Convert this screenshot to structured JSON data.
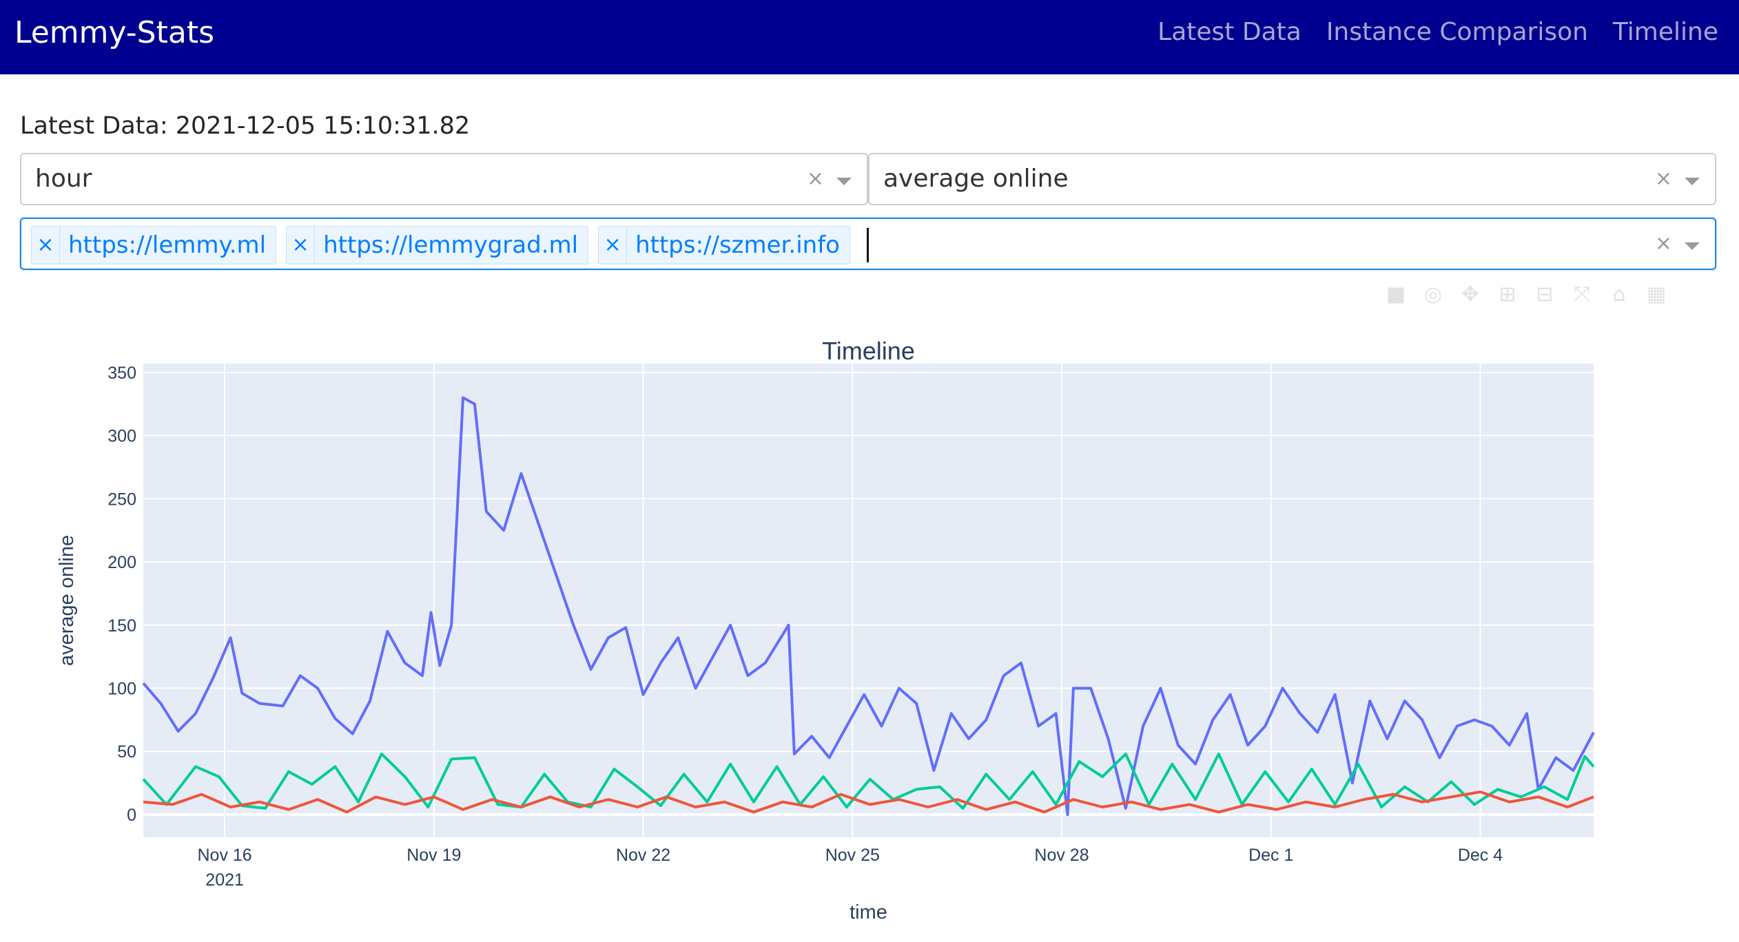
{
  "navbar": {
    "brand": "Lemmy-Stats",
    "links": [
      "Latest Data",
      "Instance Comparison",
      "Timeline"
    ],
    "background": "#000090"
  },
  "latest_data_label": "Latest Data: 2021-12-05 15:10:31.82",
  "controls": {
    "interval_select": {
      "value": "hour"
    },
    "metric_select": {
      "value": "average online"
    },
    "instances": [
      "https://lemmy.ml",
      "https://lemmygrad.ml",
      "https://szmer.info"
    ]
  },
  "modebar_icons": [
    "camera-icon",
    "zoom-icon",
    "pan-icon",
    "zoom-in-icon",
    "zoom-out-icon",
    "autoscale-icon",
    "home-icon",
    "plotly-logo-icon"
  ],
  "chart_data": {
    "type": "line",
    "title": "Timeline",
    "xlabel": "time",
    "ylabel": "average online",
    "x_ticks": [
      "Nov 16",
      "Nov 19",
      "Nov 22",
      "Nov 25",
      "Nov 28",
      "Dec 1",
      "Dec 4"
    ],
    "x_tick_year": "2021",
    "y_ticks": [
      0,
      50,
      100,
      150,
      200,
      250,
      300,
      350
    ],
    "xlim": [
      "2021-11-14 20:00",
      "2021-12-05 15:00"
    ],
    "ylim": [
      -18,
      357
    ],
    "grid": true,
    "plot_bgcolor": "#e5ecf6",
    "series": [
      {
        "color": "#636efa",
        "points": [
          [
            "2021-11-14 20:00",
            104
          ],
          [
            "2021-11-15 02:00",
            88
          ],
          [
            "2021-11-15 08:00",
            66
          ],
          [
            "2021-11-15 14:00",
            80
          ],
          [
            "2021-11-15 20:00",
            108
          ],
          [
            "2021-11-16 02:00",
            140
          ],
          [
            "2021-11-16 06:00",
            96
          ],
          [
            "2021-11-16 12:00",
            88
          ],
          [
            "2021-11-16 20:00",
            86
          ],
          [
            "2021-11-17 02:00",
            110
          ],
          [
            "2021-11-17 08:00",
            100
          ],
          [
            "2021-11-17 14:00",
            76
          ],
          [
            "2021-11-17 20:00",
            64
          ],
          [
            "2021-11-18 02:00",
            90
          ],
          [
            "2021-11-18 08:00",
            145
          ],
          [
            "2021-11-18 14:00",
            120
          ],
          [
            "2021-11-18 20:00",
            110
          ],
          [
            "2021-11-18 23:00",
            160
          ],
          [
            "2021-11-19 02:00",
            118
          ],
          [
            "2021-11-19 06:00",
            150
          ],
          [
            "2021-11-19 10:00",
            330
          ],
          [
            "2021-11-19 14:00",
            325
          ],
          [
            "2021-11-19 18:00",
            240
          ],
          [
            "2021-11-20 00:00",
            225
          ],
          [
            "2021-11-20 06:00",
            270
          ],
          [
            "2021-11-20 12:00",
            230
          ],
          [
            "2021-11-20 18:00",
            190
          ],
          [
            "2021-11-21 00:00",
            150
          ],
          [
            "2021-11-21 06:00",
            115
          ],
          [
            "2021-11-21 12:00",
            140
          ],
          [
            "2021-11-21 18:00",
            148
          ],
          [
            "2021-11-22 00:00",
            95
          ],
          [
            "2021-11-22 06:00",
            120
          ],
          [
            "2021-11-22 12:00",
            140
          ],
          [
            "2021-11-22 18:00",
            100
          ],
          [
            "2021-11-23 00:00",
            125
          ],
          [
            "2021-11-23 06:00",
            150
          ],
          [
            "2021-11-23 12:00",
            110
          ],
          [
            "2021-11-23 18:00",
            120
          ],
          [
            "2021-11-24 02:00",
            150
          ],
          [
            "2021-11-24 04:00",
            48
          ],
          [
            "2021-11-24 10:00",
            62
          ],
          [
            "2021-11-24 16:00",
            45
          ],
          [
            "2021-11-24 22:00",
            70
          ],
          [
            "2021-11-25 04:00",
            95
          ],
          [
            "2021-11-25 10:00",
            70
          ],
          [
            "2021-11-25 16:00",
            100
          ],
          [
            "2021-11-25 22:00",
            88
          ],
          [
            "2021-11-26 04:00",
            35
          ],
          [
            "2021-11-26 10:00",
            80
          ],
          [
            "2021-11-26 16:00",
            60
          ],
          [
            "2021-11-26 22:00",
            75
          ],
          [
            "2021-11-27 04:00",
            110
          ],
          [
            "2021-11-27 10:00",
            120
          ],
          [
            "2021-11-27 16:00",
            70
          ],
          [
            "2021-11-27 22:00",
            80
          ],
          [
            "2021-11-28 02:00",
            0
          ],
          [
            "2021-11-28 04:00",
            100
          ],
          [
            "2021-11-28 10:00",
            100
          ],
          [
            "2021-11-28 16:00",
            60
          ],
          [
            "2021-11-28 22:00",
            5
          ],
          [
            "2021-11-29 04:00",
            70
          ],
          [
            "2021-11-29 10:00",
            100
          ],
          [
            "2021-11-29 16:00",
            55
          ],
          [
            "2021-11-29 22:00",
            40
          ],
          [
            "2021-11-30 04:00",
            75
          ],
          [
            "2021-11-30 10:00",
            95
          ],
          [
            "2021-11-30 16:00",
            55
          ],
          [
            "2021-11-30 22:00",
            70
          ],
          [
            "2021-12-01 04:00",
            100
          ],
          [
            "2021-12-01 10:00",
            80
          ],
          [
            "2021-12-01 16:00",
            65
          ],
          [
            "2021-12-01 22:00",
            95
          ],
          [
            "2021-12-02 04:00",
            25
          ],
          [
            "2021-12-02 10:00",
            90
          ],
          [
            "2021-12-02 16:00",
            60
          ],
          [
            "2021-12-02 22:00",
            90
          ],
          [
            "2021-12-03 04:00",
            75
          ],
          [
            "2021-12-03 10:00",
            45
          ],
          [
            "2021-12-03 16:00",
            70
          ],
          [
            "2021-12-03 22:00",
            75
          ],
          [
            "2021-12-04 04:00",
            70
          ],
          [
            "2021-12-04 10:00",
            55
          ],
          [
            "2021-12-04 16:00",
            80
          ],
          [
            "2021-12-04 20:00",
            20
          ],
          [
            "2021-12-05 02:00",
            45
          ],
          [
            "2021-12-05 08:00",
            35
          ],
          [
            "2021-12-05 15:00",
            65
          ]
        ]
      },
      {
        "color": "#00cc96",
        "points": [
          [
            "2021-11-14 20:00",
            28
          ],
          [
            "2021-11-15 04:00",
            8
          ],
          [
            "2021-11-15 14:00",
            38
          ],
          [
            "2021-11-15 22:00",
            30
          ],
          [
            "2021-11-16 06:00",
            7
          ],
          [
            "2021-11-16 14:00",
            5
          ],
          [
            "2021-11-16 22:00",
            34
          ],
          [
            "2021-11-17 06:00",
            24
          ],
          [
            "2021-11-17 14:00",
            38
          ],
          [
            "2021-11-17 22:00",
            10
          ],
          [
            "2021-11-18 06:00",
            48
          ],
          [
            "2021-11-18 14:00",
            30
          ],
          [
            "2021-11-18 22:00",
            6
          ],
          [
            "2021-11-19 06:00",
            44
          ],
          [
            "2021-11-19 14:00",
            45
          ],
          [
            "2021-11-19 22:00",
            8
          ],
          [
            "2021-11-20 06:00",
            6
          ],
          [
            "2021-11-20 14:00",
            32
          ],
          [
            "2021-11-20 22:00",
            10
          ],
          [
            "2021-11-21 06:00",
            6
          ],
          [
            "2021-11-21 14:00",
            36
          ],
          [
            "2021-11-21 22:00",
            22
          ],
          [
            "2021-11-22 06:00",
            7
          ],
          [
            "2021-11-22 14:00",
            32
          ],
          [
            "2021-11-22 22:00",
            10
          ],
          [
            "2021-11-23 06:00",
            40
          ],
          [
            "2021-11-23 14:00",
            10
          ],
          [
            "2021-11-23 22:00",
            38
          ],
          [
            "2021-11-24 06:00",
            8
          ],
          [
            "2021-11-24 14:00",
            30
          ],
          [
            "2021-11-24 22:00",
            6
          ],
          [
            "2021-11-25 06:00",
            28
          ],
          [
            "2021-11-25 14:00",
            12
          ],
          [
            "2021-11-25 22:00",
            20
          ],
          [
            "2021-11-26 06:00",
            22
          ],
          [
            "2021-11-26 14:00",
            5
          ],
          [
            "2021-11-26 22:00",
            32
          ],
          [
            "2021-11-27 06:00",
            12
          ],
          [
            "2021-11-27 14:00",
            34
          ],
          [
            "2021-11-27 22:00",
            8
          ],
          [
            "2021-11-28 06:00",
            42
          ],
          [
            "2021-11-28 14:00",
            30
          ],
          [
            "2021-11-28 22:00",
            48
          ],
          [
            "2021-11-29 06:00",
            8
          ],
          [
            "2021-11-29 14:00",
            40
          ],
          [
            "2021-11-29 22:00",
            12
          ],
          [
            "2021-11-30 06:00",
            48
          ],
          [
            "2021-11-30 14:00",
            8
          ],
          [
            "2021-11-30 22:00",
            34
          ],
          [
            "2021-12-01 06:00",
            10
          ],
          [
            "2021-12-01 14:00",
            36
          ],
          [
            "2021-12-01 22:00",
            8
          ],
          [
            "2021-12-02 06:00",
            40
          ],
          [
            "2021-12-02 14:00",
            6
          ],
          [
            "2021-12-02 22:00",
            22
          ],
          [
            "2021-12-03 06:00",
            10
          ],
          [
            "2021-12-03 14:00",
            26
          ],
          [
            "2021-12-03 22:00",
            8
          ],
          [
            "2021-12-04 06:00",
            20
          ],
          [
            "2021-12-04 14:00",
            14
          ],
          [
            "2021-12-04 22:00",
            22
          ],
          [
            "2021-12-05 06:00",
            12
          ],
          [
            "2021-12-05 12:00",
            46
          ],
          [
            "2021-12-05 15:00",
            38
          ]
        ]
      },
      {
        "color": "#ef553b",
        "points": [
          [
            "2021-11-14 20:00",
            10
          ],
          [
            "2021-11-15 06:00",
            8
          ],
          [
            "2021-11-15 16:00",
            16
          ],
          [
            "2021-11-16 02:00",
            6
          ],
          [
            "2021-11-16 12:00",
            10
          ],
          [
            "2021-11-16 22:00",
            4
          ],
          [
            "2021-11-17 08:00",
            12
          ],
          [
            "2021-11-17 18:00",
            2
          ],
          [
            "2021-11-18 04:00",
            14
          ],
          [
            "2021-11-18 14:00",
            8
          ],
          [
            "2021-11-19 00:00",
            14
          ],
          [
            "2021-11-19 10:00",
            4
          ],
          [
            "2021-11-19 20:00",
            12
          ],
          [
            "2021-11-20 06:00",
            6
          ],
          [
            "2021-11-20 16:00",
            14
          ],
          [
            "2021-11-21 02:00",
            6
          ],
          [
            "2021-11-21 12:00",
            12
          ],
          [
            "2021-11-21 22:00",
            6
          ],
          [
            "2021-11-22 08:00",
            14
          ],
          [
            "2021-11-22 18:00",
            6
          ],
          [
            "2021-11-23 04:00",
            10
          ],
          [
            "2021-11-23 14:00",
            2
          ],
          [
            "2021-11-24 00:00",
            10
          ],
          [
            "2021-11-24 10:00",
            6
          ],
          [
            "2021-11-24 20:00",
            16
          ],
          [
            "2021-11-25 06:00",
            8
          ],
          [
            "2021-11-25 16:00",
            12
          ],
          [
            "2021-11-26 02:00",
            6
          ],
          [
            "2021-11-26 12:00",
            12
          ],
          [
            "2021-11-26 22:00",
            4
          ],
          [
            "2021-11-27 08:00",
            10
          ],
          [
            "2021-11-27 18:00",
            2
          ],
          [
            "2021-11-28 04:00",
            12
          ],
          [
            "2021-11-28 14:00",
            6
          ],
          [
            "2021-11-29 00:00",
            10
          ],
          [
            "2021-11-29 10:00",
            4
          ],
          [
            "2021-11-29 20:00",
            8
          ],
          [
            "2021-11-30 06:00",
            2
          ],
          [
            "2021-11-30 16:00",
            8
          ],
          [
            "2021-12-01 02:00",
            4
          ],
          [
            "2021-12-01 12:00",
            10
          ],
          [
            "2021-12-01 22:00",
            6
          ],
          [
            "2021-12-02 08:00",
            12
          ],
          [
            "2021-12-02 18:00",
            16
          ],
          [
            "2021-12-03 04:00",
            10
          ],
          [
            "2021-12-03 14:00",
            14
          ],
          [
            "2021-12-04 00:00",
            18
          ],
          [
            "2021-12-04 10:00",
            10
          ],
          [
            "2021-12-04 20:00",
            14
          ],
          [
            "2021-12-05 06:00",
            6
          ],
          [
            "2021-12-05 15:00",
            14
          ]
        ]
      }
    ]
  }
}
